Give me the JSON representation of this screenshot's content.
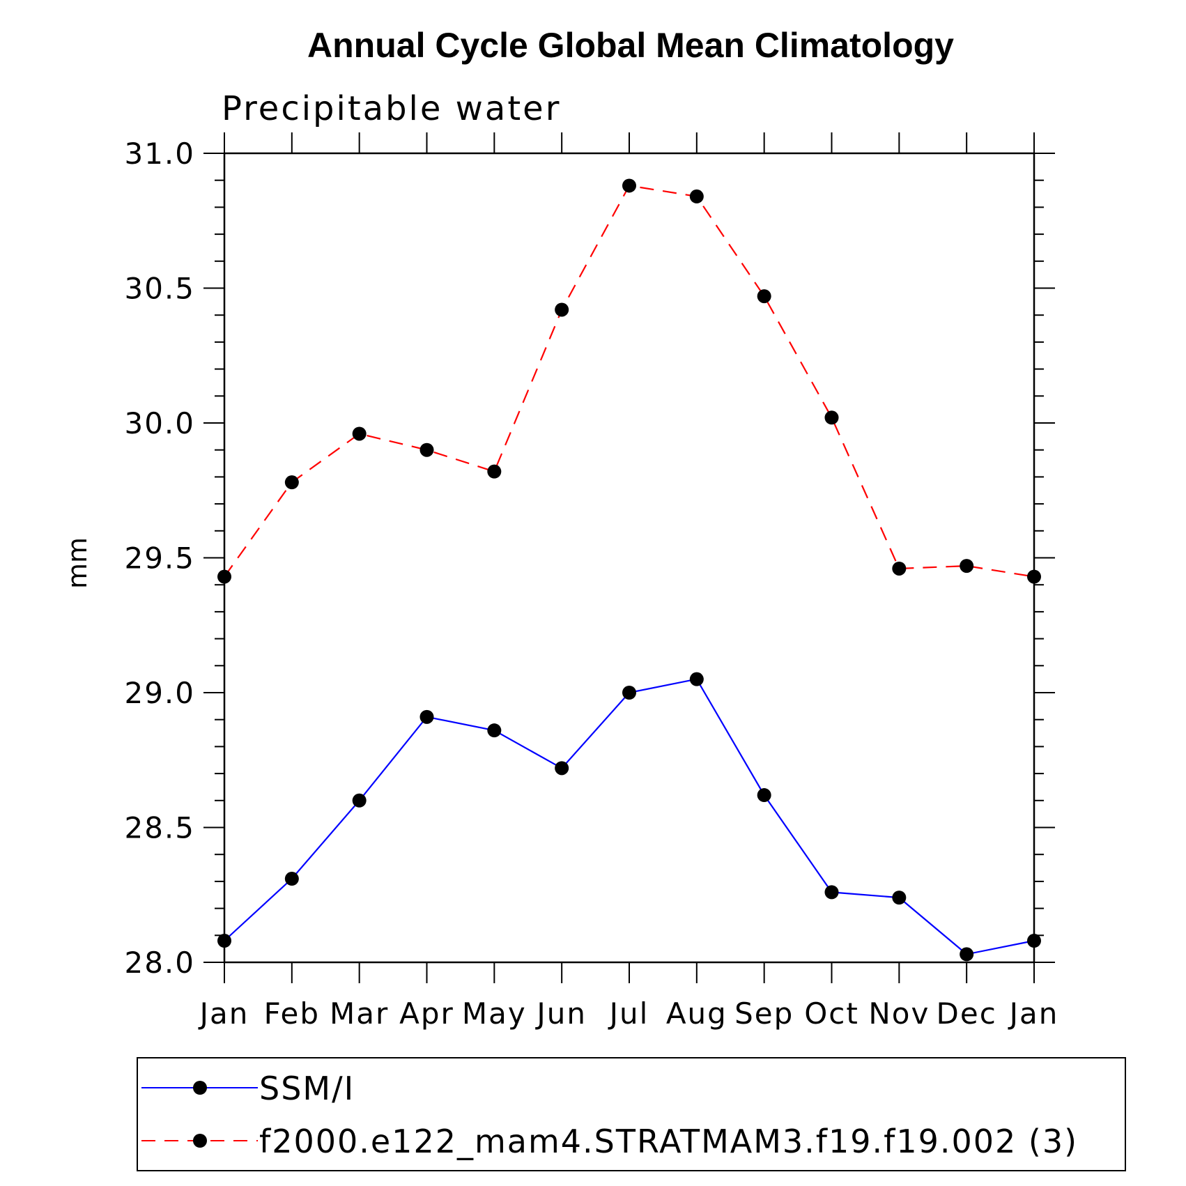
{
  "chart_data": {
    "type": "line",
    "title": "Annual Cycle Global Mean Climatology",
    "subtitle": "Precipitable water",
    "ylabel": "mm",
    "xlabel": "",
    "ylim": [
      28.0,
      31.0
    ],
    "yticks": [
      "28.0",
      "28.5",
      "29.0",
      "29.5",
      "30.0",
      "30.5",
      "31.0"
    ],
    "categories": [
      "Jan",
      "Feb",
      "Mar",
      "Apr",
      "May",
      "Jun",
      "Jul",
      "Aug",
      "Sep",
      "Oct",
      "Nov",
      "Dec",
      "Jan"
    ],
    "series": [
      {
        "name": "SSM/I",
        "color": "#0000ff",
        "dash": "solid",
        "values": [
          28.08,
          28.31,
          28.6,
          28.91,
          28.86,
          28.72,
          29.0,
          29.05,
          28.62,
          28.26,
          28.24,
          28.03,
          28.08
        ]
      },
      {
        "name": "f2000.e122_mam4.STRATMAM3.f19.f19.002 (3)",
        "color": "#ff0000",
        "dash": "dashed",
        "values": [
          29.43,
          29.78,
          29.96,
          29.9,
          29.82,
          30.42,
          30.88,
          30.84,
          30.47,
          30.02,
          29.46,
          29.47,
          29.43
        ]
      }
    ],
    "legend_position": "bottom"
  }
}
